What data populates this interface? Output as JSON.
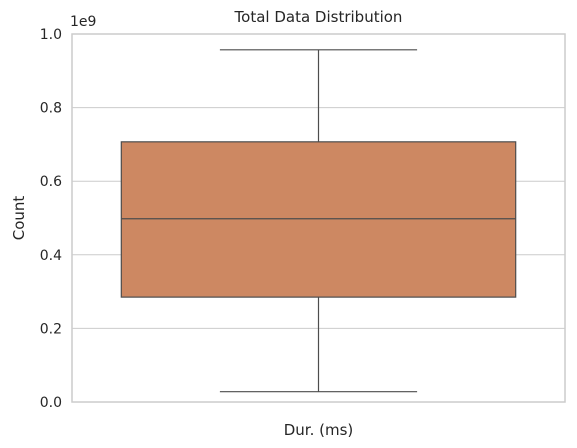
{
  "chart_data": {
    "type": "box",
    "title": "Total Data Distribution",
    "xlabel": "Dur. (ms)",
    "ylabel": "Count",
    "y_offset_label": "1e9",
    "y_scale": 1000000000,
    "ylim": [
      0,
      1000000000
    ],
    "yticks": [
      0,
      200000000,
      400000000,
      600000000,
      800000000,
      1000000000
    ],
    "ytick_labels": [
      "0.0",
      "0.2",
      "0.4",
      "0.6",
      "0.8",
      "1.0"
    ],
    "grid": true,
    "box": {
      "whisker_low": 28000000,
      "q1": 285000000,
      "median": 498000000,
      "q3": 707000000,
      "whisker_high": 957000000,
      "color": "#cd8862",
      "edge_color": "#4d4d4d"
    }
  }
}
